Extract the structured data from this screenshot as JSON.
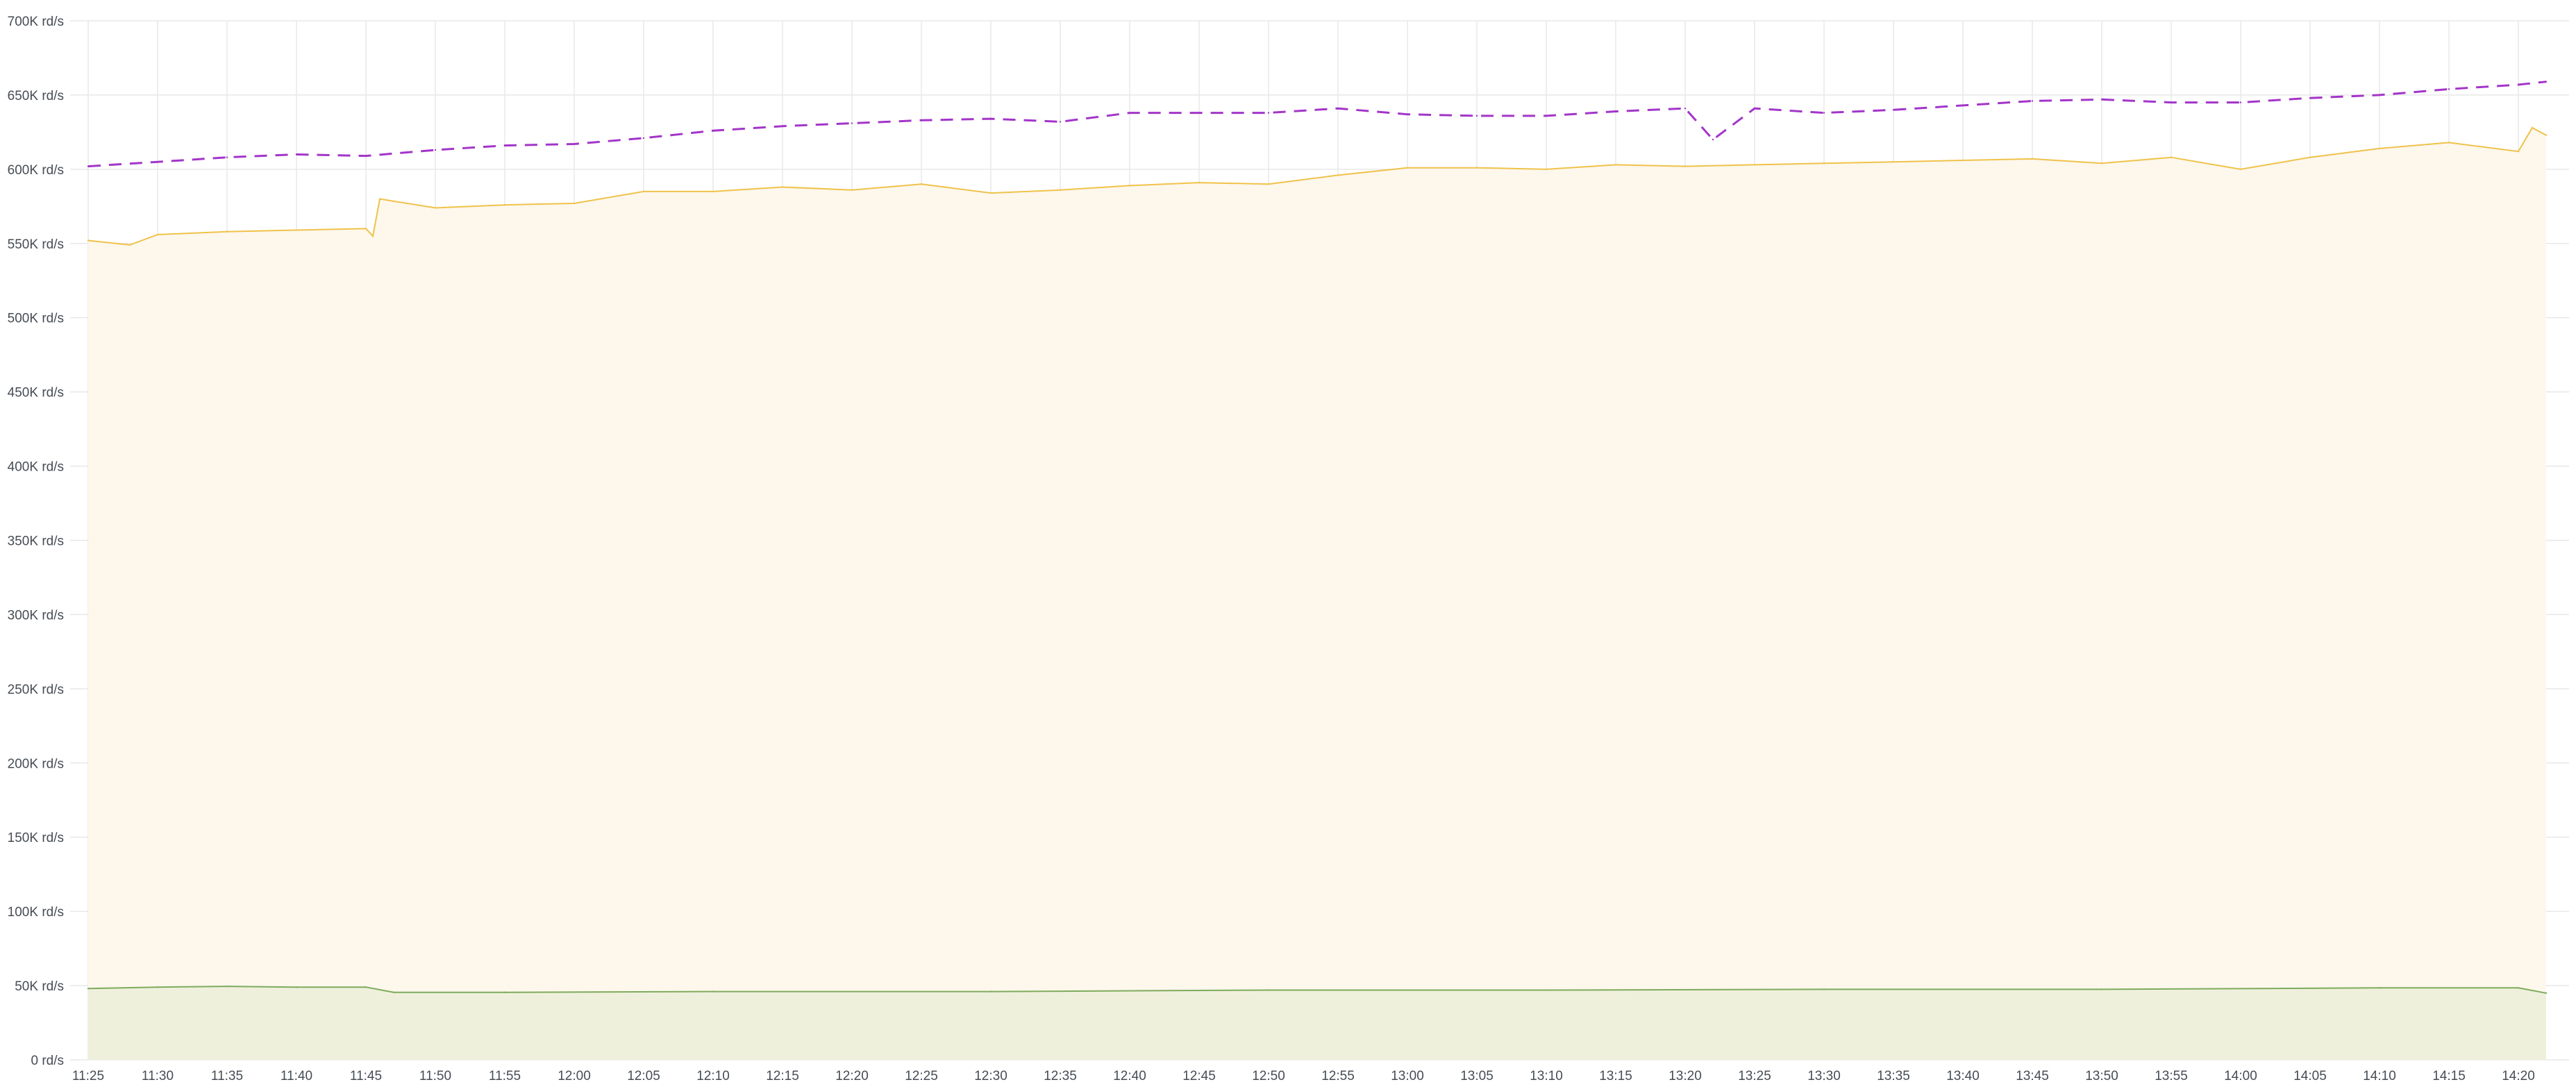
{
  "chart_data": {
    "type": "area",
    "ylim": [
      0,
      700000
    ],
    "y_unit": "rd/s",
    "y_ticks": [
      "0 rd/s",
      "50K rd/s",
      "100K rd/s",
      "150K rd/s",
      "200K rd/s",
      "250K rd/s",
      "300K rd/s",
      "350K rd/s",
      "400K rd/s",
      "450K rd/s",
      "500K rd/s",
      "550K rd/s",
      "600K rd/s",
      "650K rd/s",
      "700K rd/s"
    ],
    "x_ticks": [
      "11:25",
      "11:30",
      "11:35",
      "11:40",
      "11:45",
      "11:50",
      "11:55",
      "12:00",
      "12:05",
      "12:10",
      "12:15",
      "12:20",
      "12:25",
      "12:30",
      "12:35",
      "12:40",
      "12:45",
      "12:50",
      "12:55",
      "13:00",
      "13:05",
      "13:10",
      "13:15",
      "13:20",
      "13:25",
      "13:30",
      "13:35",
      "13:40",
      "13:45",
      "13:50",
      "13:55",
      "14:00",
      "14:05",
      "14:10",
      "14:15",
      "14:20"
    ],
    "x_start": "11:25",
    "x_end": "14:22",
    "grid": true,
    "colors": {
      "dashed_series": "#a335c9",
      "top_series_line": "#efc24a",
      "top_series_fill": "#fdf7ec",
      "bottom_series_line": "#7eab5c",
      "bottom_series_fill": "#eff0dc"
    },
    "series": [
      {
        "style": "dashed",
        "color": "#a335c9",
        "x": [
          "11:25",
          "11:30",
          "11:35",
          "11:40",
          "11:45",
          "11:50",
          "11:55",
          "12:00",
          "12:05",
          "12:10",
          "12:15",
          "12:20",
          "12:25",
          "12:30",
          "12:35",
          "12:40",
          "12:45",
          "12:50",
          "12:55",
          "13:00",
          "13:05",
          "13:10",
          "13:15",
          "13:20",
          "13:22",
          "13:25",
          "13:30",
          "13:35",
          "13:40",
          "13:45",
          "13:50",
          "13:55",
          "14:00",
          "14:05",
          "14:10",
          "14:15",
          "14:20",
          "14:22"
        ],
        "values": [
          602000,
          605000,
          608000,
          610000,
          609000,
          613000,
          616000,
          617000,
          621000,
          626000,
          629000,
          631000,
          633000,
          634000,
          632000,
          638000,
          638000,
          638000,
          641000,
          637000,
          636000,
          636000,
          639000,
          641000,
          620000,
          641000,
          638000,
          640000,
          643000,
          646000,
          647000,
          645000,
          645000,
          648000,
          650000,
          654000,
          657000,
          659000
        ]
      },
      {
        "style": "area",
        "color": "#efc24a",
        "x": [
          "11:25",
          "11:28",
          "11:30",
          "11:35",
          "11:40",
          "11:45",
          "11:45.5",
          "11:46",
          "11:50",
          "11:55",
          "12:00",
          "12:05",
          "12:10",
          "12:15",
          "12:20",
          "12:25",
          "12:30",
          "12:35",
          "12:40",
          "12:45",
          "12:50",
          "12:55",
          "13:00",
          "13:05",
          "13:10",
          "13:15",
          "13:20",
          "13:25",
          "13:30",
          "13:35",
          "13:40",
          "13:45",
          "13:50",
          "13:55",
          "14:00",
          "14:05",
          "14:10",
          "14:15",
          "14:20",
          "14:21",
          "14:22"
        ],
        "values": [
          552000,
          549000,
          556000,
          558000,
          559000,
          560000,
          555000,
          580000,
          574000,
          576000,
          577000,
          585000,
          585000,
          588000,
          586000,
          590000,
          584000,
          586000,
          589000,
          591000,
          590000,
          596000,
          601000,
          601000,
          600000,
          603000,
          602000,
          603000,
          604000,
          605000,
          606000,
          607000,
          604000,
          608000,
          600000,
          608000,
          614000,
          618000,
          612000,
          628000,
          623000
        ]
      },
      {
        "style": "area",
        "color": "#7eab5c",
        "x": [
          "11:25",
          "11:30",
          "11:35",
          "11:40",
          "11:45",
          "11:47",
          "11:55",
          "12:10",
          "12:30",
          "12:50",
          "13:10",
          "13:30",
          "13:50",
          "14:10",
          "14:20",
          "14:22"
        ],
        "values": [
          48000,
          49000,
          49500,
          49000,
          49000,
          45500,
          45500,
          46000,
          46000,
          47000,
          47000,
          47500,
          47500,
          48500,
          48500,
          45000
        ]
      }
    ]
  }
}
